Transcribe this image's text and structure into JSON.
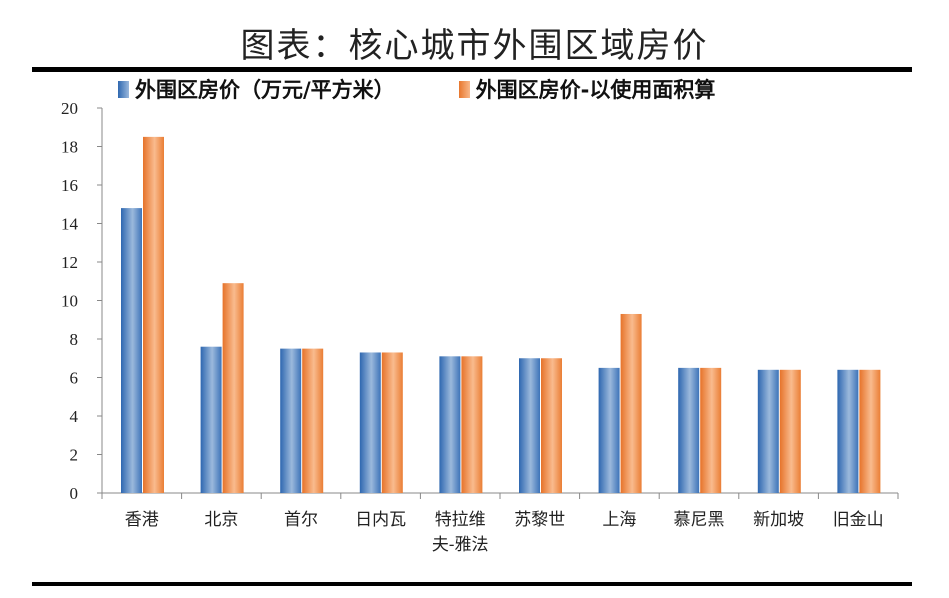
{
  "title": "图表：核心城市外围区域房价",
  "colors": {
    "series1": "#4a7fc1",
    "series2": "#f08a3c"
  },
  "chart_data": {
    "type": "bar",
    "categories": [
      "香港",
      "北京",
      "首尔",
      "日内瓦",
      "特拉维夫-雅法",
      "苏黎世",
      "上海",
      "慕尼黑",
      "新加坡",
      "旧金山"
    ],
    "category_lines": [
      [
        "香港"
      ],
      [
        "北京"
      ],
      [
        "首尔"
      ],
      [
        "日内瓦"
      ],
      [
        "特拉维",
        "夫-雅法"
      ],
      [
        "苏黎世"
      ],
      [
        "上海"
      ],
      [
        "慕尼黑"
      ],
      [
        "新加坡"
      ],
      [
        "旧金山"
      ]
    ],
    "series": [
      {
        "name": "外围区房价（万元/平方米）",
        "values": [
          14.8,
          7.6,
          7.5,
          7.3,
          7.1,
          7.0,
          6.5,
          6.5,
          6.4,
          6.4
        ]
      },
      {
        "name": "外围区房价-以使用面积算",
        "values": [
          18.5,
          10.9,
          7.5,
          7.3,
          7.1,
          7.0,
          9.3,
          6.5,
          6.4,
          6.4
        ]
      }
    ],
    "ylim": [
      0,
      20
    ],
    "yticks": [
      0,
      2,
      4,
      6,
      8,
      10,
      12,
      14,
      16,
      18,
      20
    ],
    "grid": false,
    "legend": "top"
  }
}
